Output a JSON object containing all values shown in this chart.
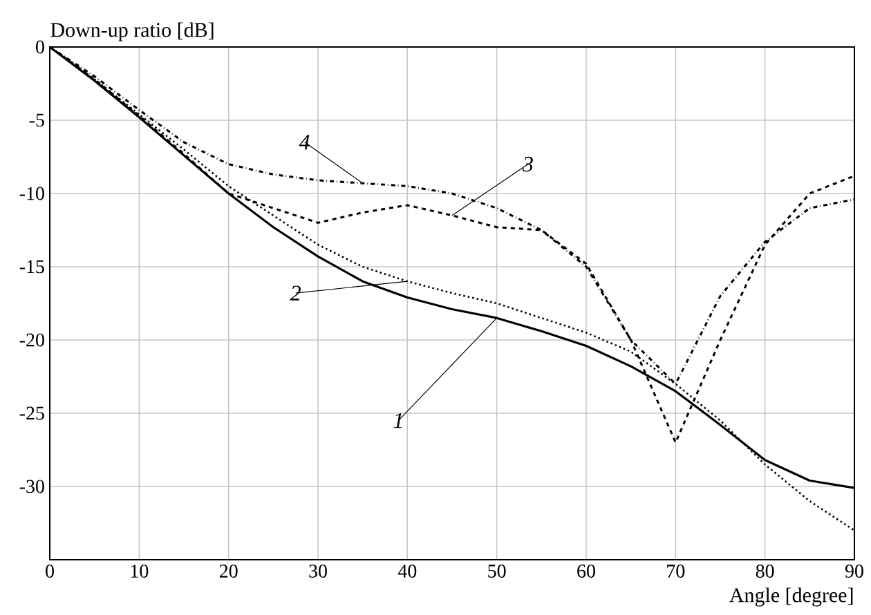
{
  "chart_data": {
    "type": "line",
    "xlabel": "Angle [degree]",
    "ylabel": "Down-up ratio [dB]",
    "x": [
      0,
      5,
      10,
      15,
      20,
      25,
      30,
      35,
      40,
      45,
      50,
      55,
      60,
      65,
      70,
      75,
      80,
      85,
      90
    ],
    "xlim": [
      0,
      90
    ],
    "xticks": [
      0,
      10,
      20,
      30,
      40,
      50,
      60,
      70,
      80,
      90
    ],
    "ylim": [
      -35,
      0
    ],
    "yticks": [
      -30,
      -25,
      -20,
      -15,
      -10,
      -5,
      0
    ],
    "grid": true,
    "annotations": [
      {
        "text": "1",
        "x": 50,
        "y": -18.5
      },
      {
        "text": "2",
        "x": 40,
        "y": -16
      },
      {
        "text": "3",
        "x": 45,
        "y": -11.5
      },
      {
        "text": "4",
        "x": 35,
        "y": -9.3
      }
    ],
    "series": [
      {
        "color": "#000000",
        "line_style": "solid",
        "values": [
          0,
          -2.3,
          -4.8,
          -7.4,
          -10,
          -12.3,
          -14.3,
          -16,
          -17.1,
          -17.9,
          -18.5,
          -19.4,
          -20.4,
          -21.8,
          -23.5,
          -25.8,
          -28.2,
          -29.6,
          -30.1
        ]
      },
      {
        "color": "#000000",
        "line_style": "dotted",
        "values": [
          0,
          -2.2,
          -4.6,
          -7,
          -9.5,
          -11.5,
          -13.5,
          -15,
          -16,
          -16.8,
          -17.5,
          -18.5,
          -19.5,
          -20.8,
          -23,
          -25.5,
          -28.5,
          -31,
          -33
        ]
      },
      {
        "color": "#000000",
        "line_style": "dashed",
        "values": [
          0,
          -2.2,
          -4.7,
          -7.3,
          -10,
          -11,
          -12,
          -11.3,
          -10.8,
          -11.5,
          -12.3,
          -12.5,
          -14.8,
          -20,
          -27,
          -20,
          -13.5,
          -10,
          -8.8
        ]
      },
      {
        "color": "#000000",
        "line_style": "dashdot",
        "values": [
          0,
          -2,
          -4.3,
          -6.5,
          -8,
          -8.7,
          -9.1,
          -9.3,
          -9.5,
          -10,
          -11,
          -12.5,
          -15,
          -20,
          -23,
          -17,
          -13.3,
          -11,
          -10.4
        ]
      }
    ]
  }
}
